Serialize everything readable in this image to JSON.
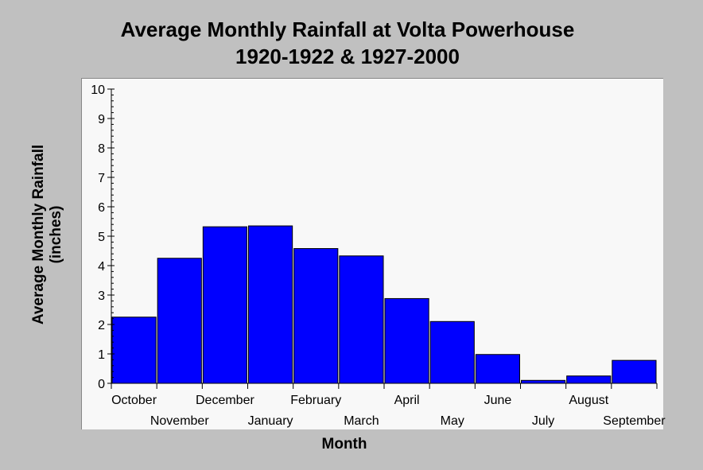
{
  "chart_data": {
    "type": "bar",
    "title": "Average Monthly Rainfall at Volta Powerhouse",
    "subtitle": "1920-1922 & 1927-2000",
    "xlabel": "Month",
    "ylabel": "Average Monthly Rainfall",
    "ylabel_line2": "(inches)",
    "categories": [
      "October",
      "November",
      "December",
      "January",
      "February",
      "March",
      "April",
      "May",
      "June",
      "July",
      "August",
      "September"
    ],
    "values": [
      2.25,
      4.25,
      5.32,
      5.35,
      4.58,
      4.33,
      2.88,
      2.1,
      0.98,
      0.1,
      0.25,
      0.78
    ],
    "ylim": [
      0,
      10
    ],
    "yticks": [
      "0",
      "1",
      "2",
      "3",
      "4",
      "5",
      "6",
      "7",
      "8",
      "9",
      "10"
    ],
    "grid": false,
    "bar_color": "#0000ff",
    "legend": "none"
  }
}
